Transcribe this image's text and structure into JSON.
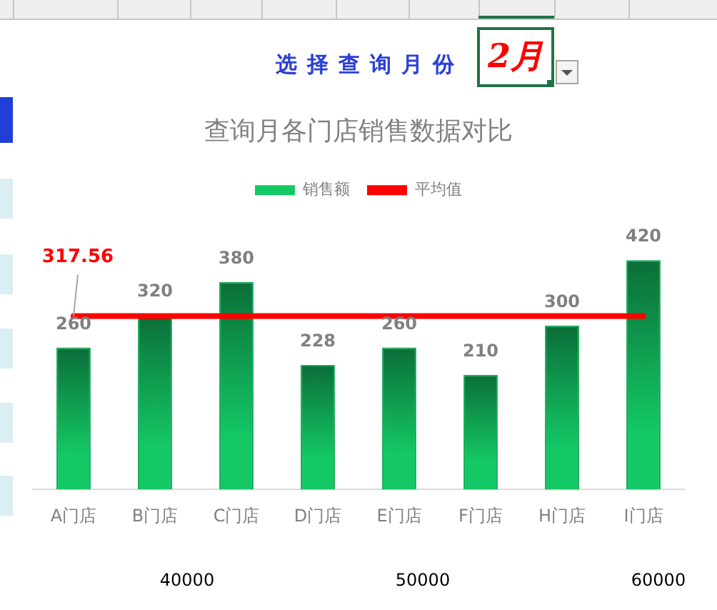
{
  "chart_data": {
    "type": "bar",
    "title": "查询月各门店销售数据对比",
    "categories": [
      "A门店",
      "B门店",
      "C门店",
      "D门店",
      "E门店",
      "F门店",
      "H门店",
      "I门店"
    ],
    "series": [
      {
        "name": "销售额",
        "color": "#14c865",
        "values": [
          260,
          320,
          380,
          228,
          260,
          210,
          300,
          420
        ],
        "value_labels": [
          "260",
          "320",
          "380",
          "228",
          "260",
          "210",
          "300",
          "420"
        ]
      },
      {
        "name": "平均值",
        "type": "line",
        "color": "#ff0000",
        "values": [
          317.56,
          317.56,
          317.56,
          317.56,
          317.56,
          317.56,
          317.56,
          317.56
        ],
        "value_labels": [
          "317.56",
          null,
          null,
          null,
          null,
          null,
          null,
          null
        ]
      }
    ],
    "tick_labels": "x",
    "grid": false,
    "legend": "top",
    "marker": "none",
    "annotations": [
      "选择查询月份",
      "2月",
      "40000",
      "50000",
      "60000"
    ]
  }
}
